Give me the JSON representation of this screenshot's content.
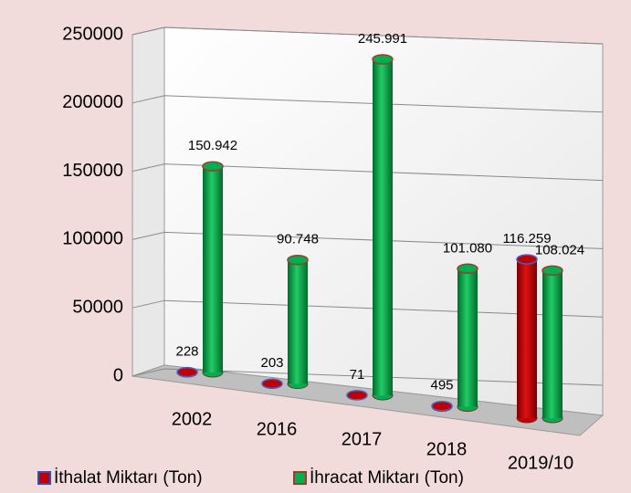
{
  "chart_data": {
    "type": "bar3d",
    "categories": [
      "2002",
      "2016",
      "2017",
      "2018",
      "2019/10"
    ],
    "series": [
      {
        "name": "İthalat Miktarı (Ton)",
        "color": "#c00000",
        "values": [
          228,
          203,
          71,
          495,
          116259
        ],
        "value_labels": [
          "228",
          "203",
          "71",
          "495",
          "116.259"
        ]
      },
      {
        "name": "İhracat Miktarı (Ton)",
        "color": "#00b050",
        "values": [
          150942,
          90748,
          245991,
          101080,
          108024
        ],
        "value_labels": [
          "150.942",
          "90.748",
          "245.991",
          "101.080",
          "108.024"
        ]
      }
    ],
    "ylim": [
      0,
      250000
    ],
    "yticks": [
      0,
      50000,
      100000,
      150000,
      200000,
      250000
    ],
    "grid": true
  }
}
